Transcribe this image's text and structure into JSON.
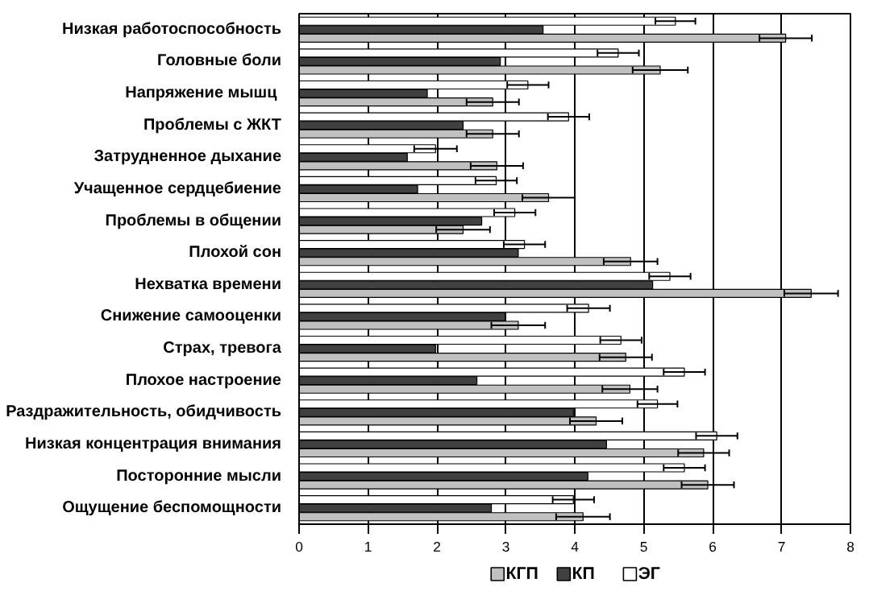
{
  "chart_data": {
    "type": "bar",
    "orientation": "horizontal",
    "categories": [
      "Низкая работоспособность",
      "Головные боли",
      "Напряжение  мышц",
      "Проблемы с ЖКТ",
      "Затрудненное дыхание",
      "Учащенное сердцебиение",
      "Проблемы в общении",
      "Плохой сон",
      "Нехватка времени",
      "Снижение самооценки",
      "Страх, тревога",
      "Плохое настроение",
      "Раздражительность, обидчивость",
      "Низкая концентрация внимания",
      "Посторонние мысли",
      "Ощущение беспомощности"
    ],
    "series": [
      {
        "name": "КГП",
        "color": "#c0c0c0",
        "values": [
          7.06,
          5.24,
          2.81,
          2.81,
          2.87,
          3.62,
          2.38,
          4.81,
          7.43,
          3.18,
          4.74,
          4.8,
          4.31,
          5.87,
          5.93,
          4.12
        ],
        "errors": [
          0.38,
          0.4,
          0.38,
          0.38,
          0.38,
          0.38,
          0.39,
          0.39,
          0.39,
          0.39,
          0.38,
          0.4,
          0.38,
          0.37,
          0.38,
          0.39
        ]
      },
      {
        "name": "КП",
        "color": "#404040",
        "values": [
          3.54,
          2.92,
          1.86,
          2.38,
          1.57,
          1.72,
          2.65,
          3.18,
          5.13,
          2.99,
          1.98,
          2.58,
          3.98,
          4.46,
          4.19,
          2.79
        ]
      },
      {
        "name": "ЭГ",
        "color": "#ffffff",
        "values": [
          5.46,
          4.63,
          3.32,
          3.91,
          1.98,
          2.86,
          3.13,
          3.27,
          5.38,
          4.2,
          4.67,
          5.59,
          5.2,
          6.06,
          5.59,
          3.98
        ],
        "errors": [
          0.29,
          0.3,
          0.3,
          0.3,
          0.31,
          0.3,
          0.3,
          0.3,
          0.3,
          0.31,
          0.3,
          0.3,
          0.29,
          0.3,
          0.3,
          0.3
        ]
      }
    ],
    "xlim": [
      0,
      8
    ],
    "xticks": [
      0,
      1,
      2,
      3,
      4,
      5,
      6,
      7,
      8
    ],
    "grid": "x",
    "legend": "bottom"
  }
}
